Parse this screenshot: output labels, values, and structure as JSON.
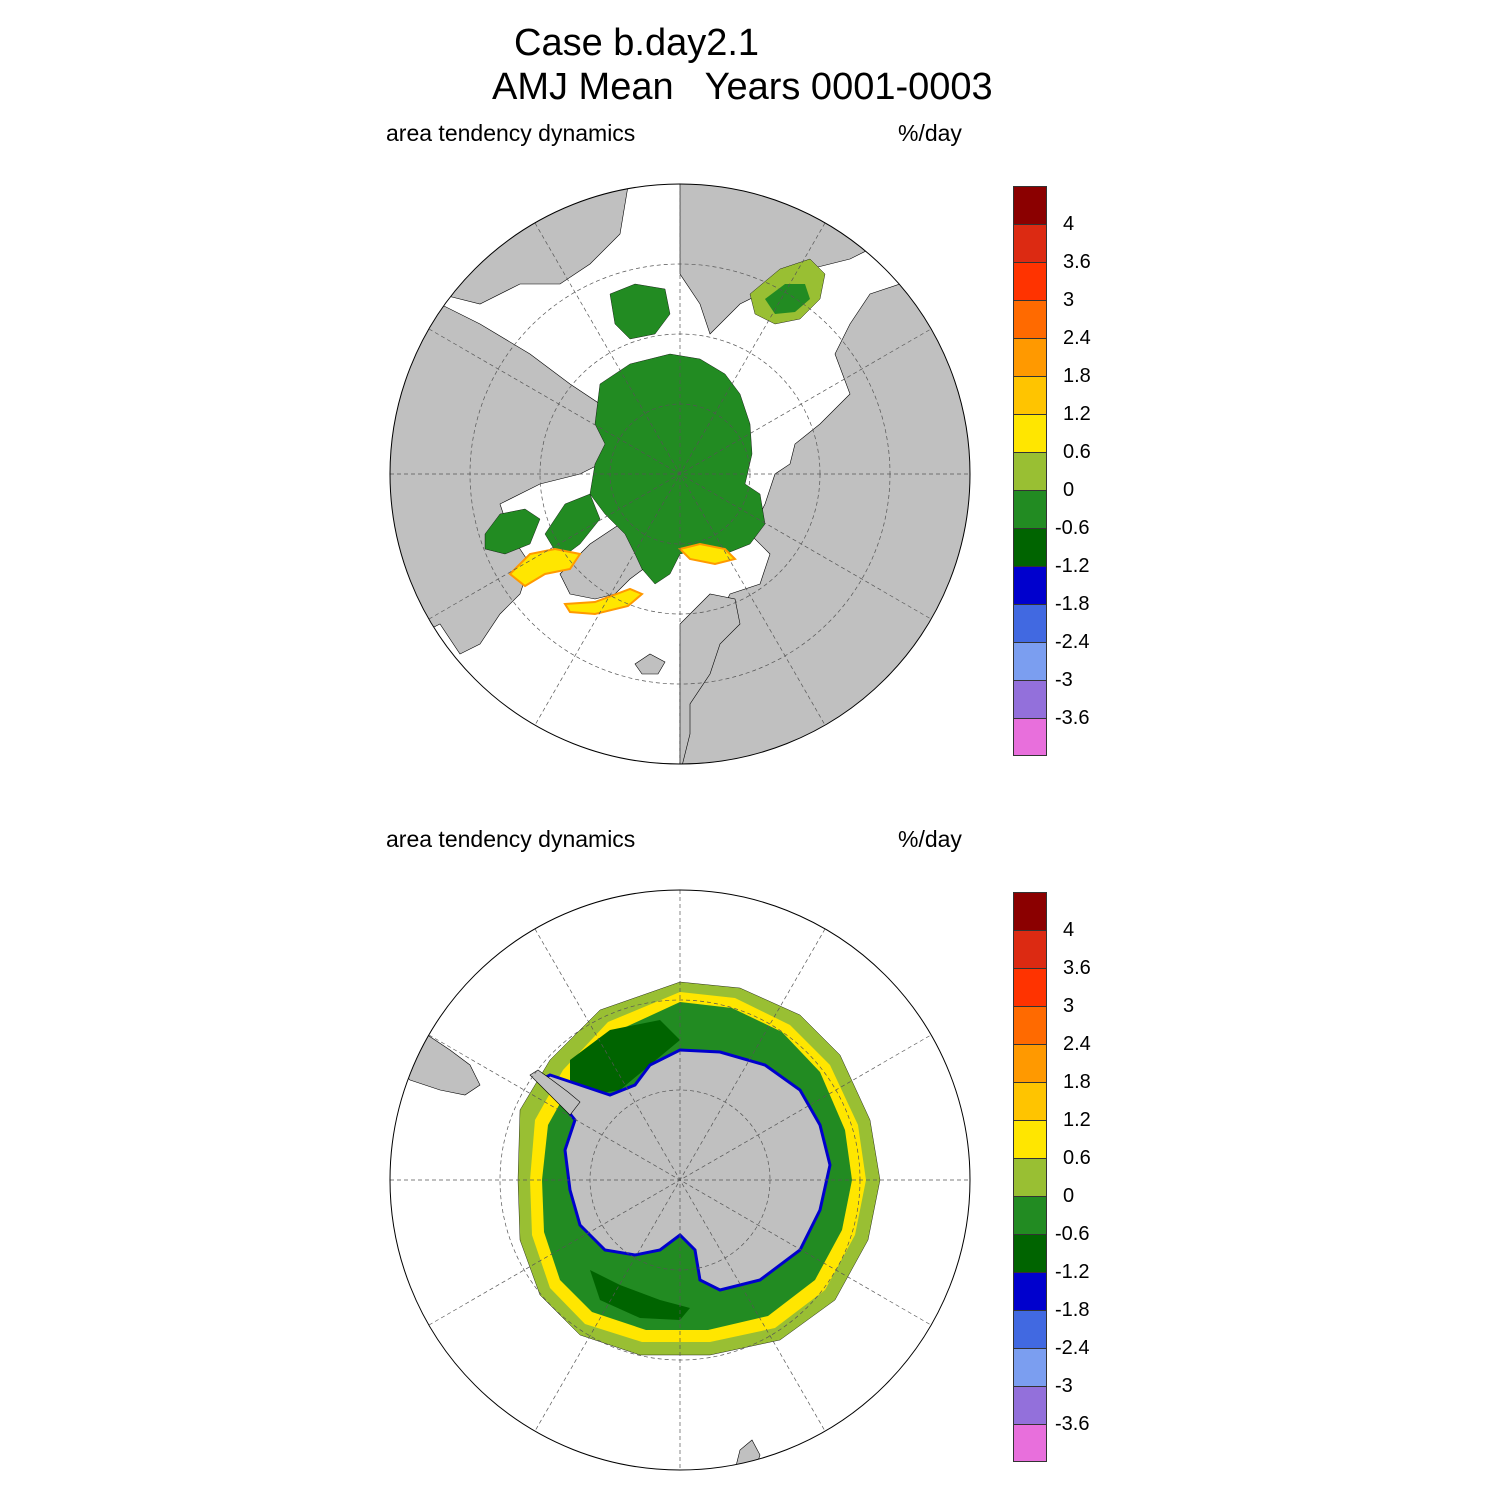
{
  "header": {
    "case_line": "Case b.day2.1",
    "period_line": "AMJ Mean   Years 0001-0003"
  },
  "panels": [
    {
      "id": "north",
      "hemisphere": "Northern Hemisphere",
      "left_label": "area tendency dynamics",
      "right_label": "%/day"
    },
    {
      "id": "south",
      "hemisphere": "Southern Hemisphere",
      "left_label": "area tendency dynamics",
      "right_label": "%/day"
    }
  ],
  "colorbar": {
    "colors": [
      "#8b0000",
      "#dc2a12",
      "#ff3300",
      "#ff6a00",
      "#ff9900",
      "#ffc400",
      "#ffe600",
      "#99bf33",
      "#228b22",
      "#006400",
      "#0000cd",
      "#4169e1",
      "#7b9ef0",
      "#9370db",
      "#e86fdc"
    ],
    "labels": [
      "4",
      "3.6",
      "3",
      "2.4",
      "1.8",
      "1.2",
      "0.6",
      "0",
      "-0.6",
      "-1.2",
      "-1.8",
      "-2.4",
      "-3",
      "-3.6"
    ]
  },
  "colors": {
    "land": "#c0c0c0",
    "ocean": "#ffffff",
    "ice_main": "#228b22",
    "ice_dark": "#006400",
    "ice_light": "#99bf33",
    "ice_yellow": "#ffe600",
    "ice_orange": "#ffc400",
    "ice_edge_blue": "#0000cd",
    "ice_edge_pink": "#e86fdc"
  }
}
